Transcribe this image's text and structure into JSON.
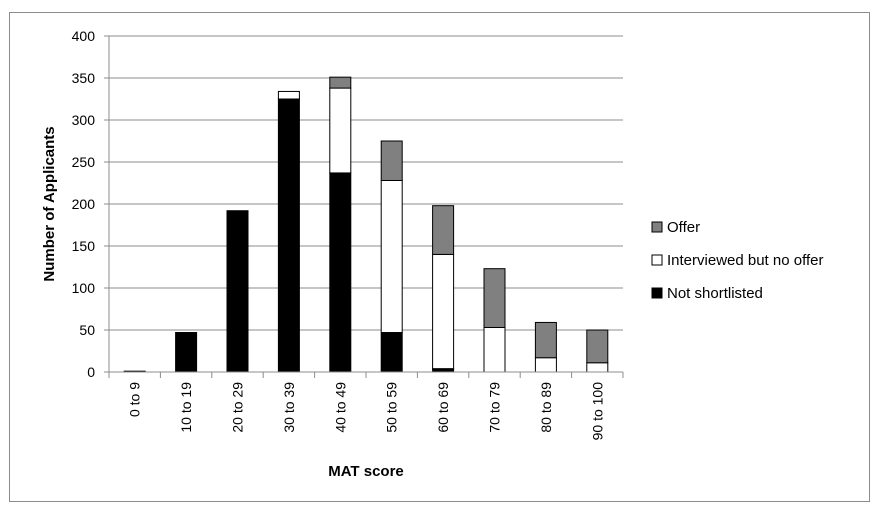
{
  "chart_data": {
    "type": "bar",
    "stacked": true,
    "title": "",
    "xlabel": "MAT score",
    "ylabel": "Number of Applicants",
    "ylim": [
      0,
      400
    ],
    "yticks": [
      0,
      50,
      100,
      150,
      200,
      250,
      300,
      350,
      400
    ],
    "grid": true,
    "legend_position": "right",
    "categories": [
      "0 to 9",
      "10 to 19",
      "20 to 29",
      "30 to 39",
      "40 to 49",
      "50 to 59",
      "60 to 69",
      "70 to 79",
      "80 to 89",
      "90 to 100"
    ],
    "series": [
      {
        "name": "Not shortlisted",
        "color": "#000000",
        "values": [
          1,
          47,
          192,
          325,
          237,
          47,
          4,
          0,
          0,
          0
        ]
      },
      {
        "name": "Interviewed but no offer",
        "color": "#ffffff",
        "values": [
          0,
          0,
          0,
          9,
          101,
          181,
          136,
          53,
          17,
          11
        ]
      },
      {
        "name": "Offer",
        "color": "#808080",
        "values": [
          0,
          0,
          0,
          0,
          13,
          47,
          58,
          70,
          42,
          39
        ]
      }
    ]
  }
}
